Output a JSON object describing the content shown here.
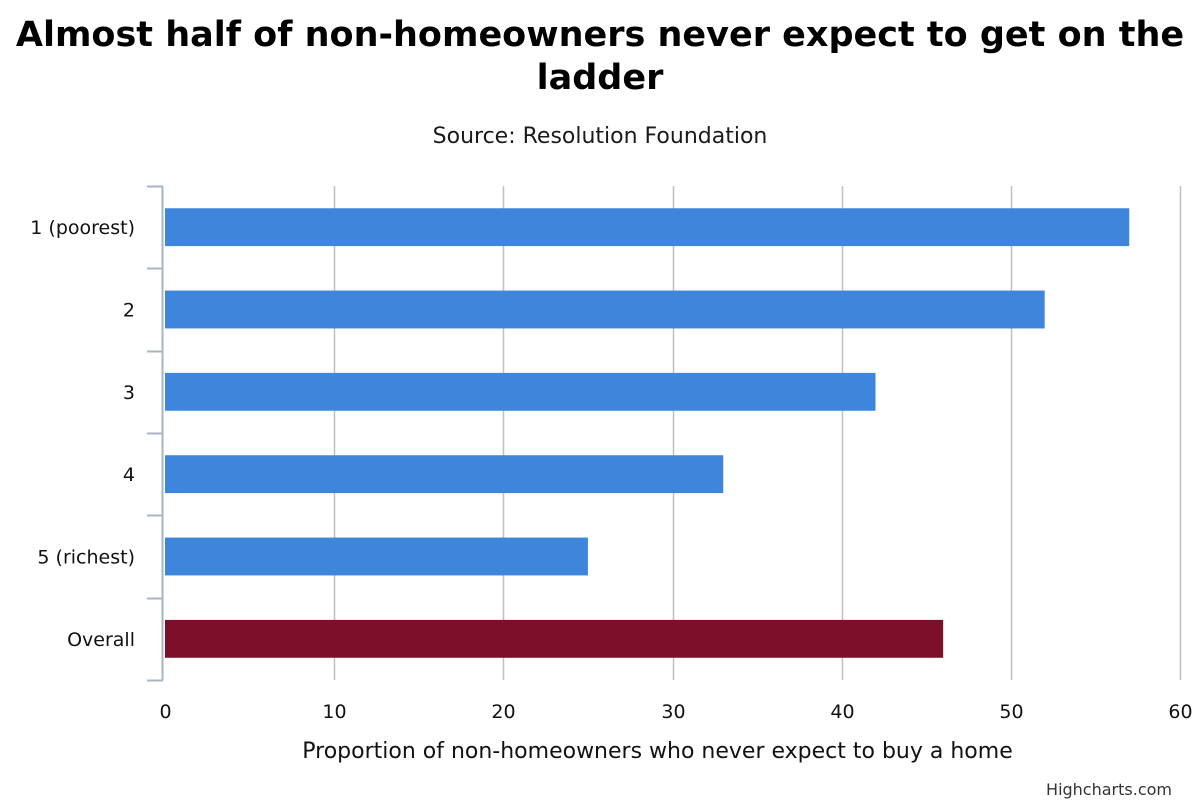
{
  "title_lines": [
    "Almost half of non-homeowners never expect to get on the",
    "ladder"
  ],
  "subtitle": "Source: Resolution Foundation",
  "credits": "Highcharts.com",
  "chart_data": {
    "type": "bar",
    "orientation": "horizontal",
    "title": "Almost half of non-homeowners never expect to get on the ladder",
    "subtitle": "Source: Resolution Foundation",
    "categories": [
      "1 (poorest)",
      "2",
      "3",
      "4",
      "5 (richest)",
      "Overall"
    ],
    "values": [
      57,
      52,
      42,
      33,
      25,
      46
    ],
    "bar_colors": [
      "#3d86dc",
      "#3d86dc",
      "#3d86dc",
      "#3d86dc",
      "#3d86dc",
      "#7b0f2a"
    ],
    "xlabel": "Proportion of non-homeowners who never expect to buy a home",
    "ylabel": "",
    "value_axis_range": [
      0,
      60
    ],
    "value_axis_ticks": [
      0,
      10,
      20,
      30,
      40,
      50,
      60
    ],
    "grid": true,
    "legend": "none",
    "gridline_color": "#c0c0c0",
    "axis_color": "#a8b4c4"
  }
}
